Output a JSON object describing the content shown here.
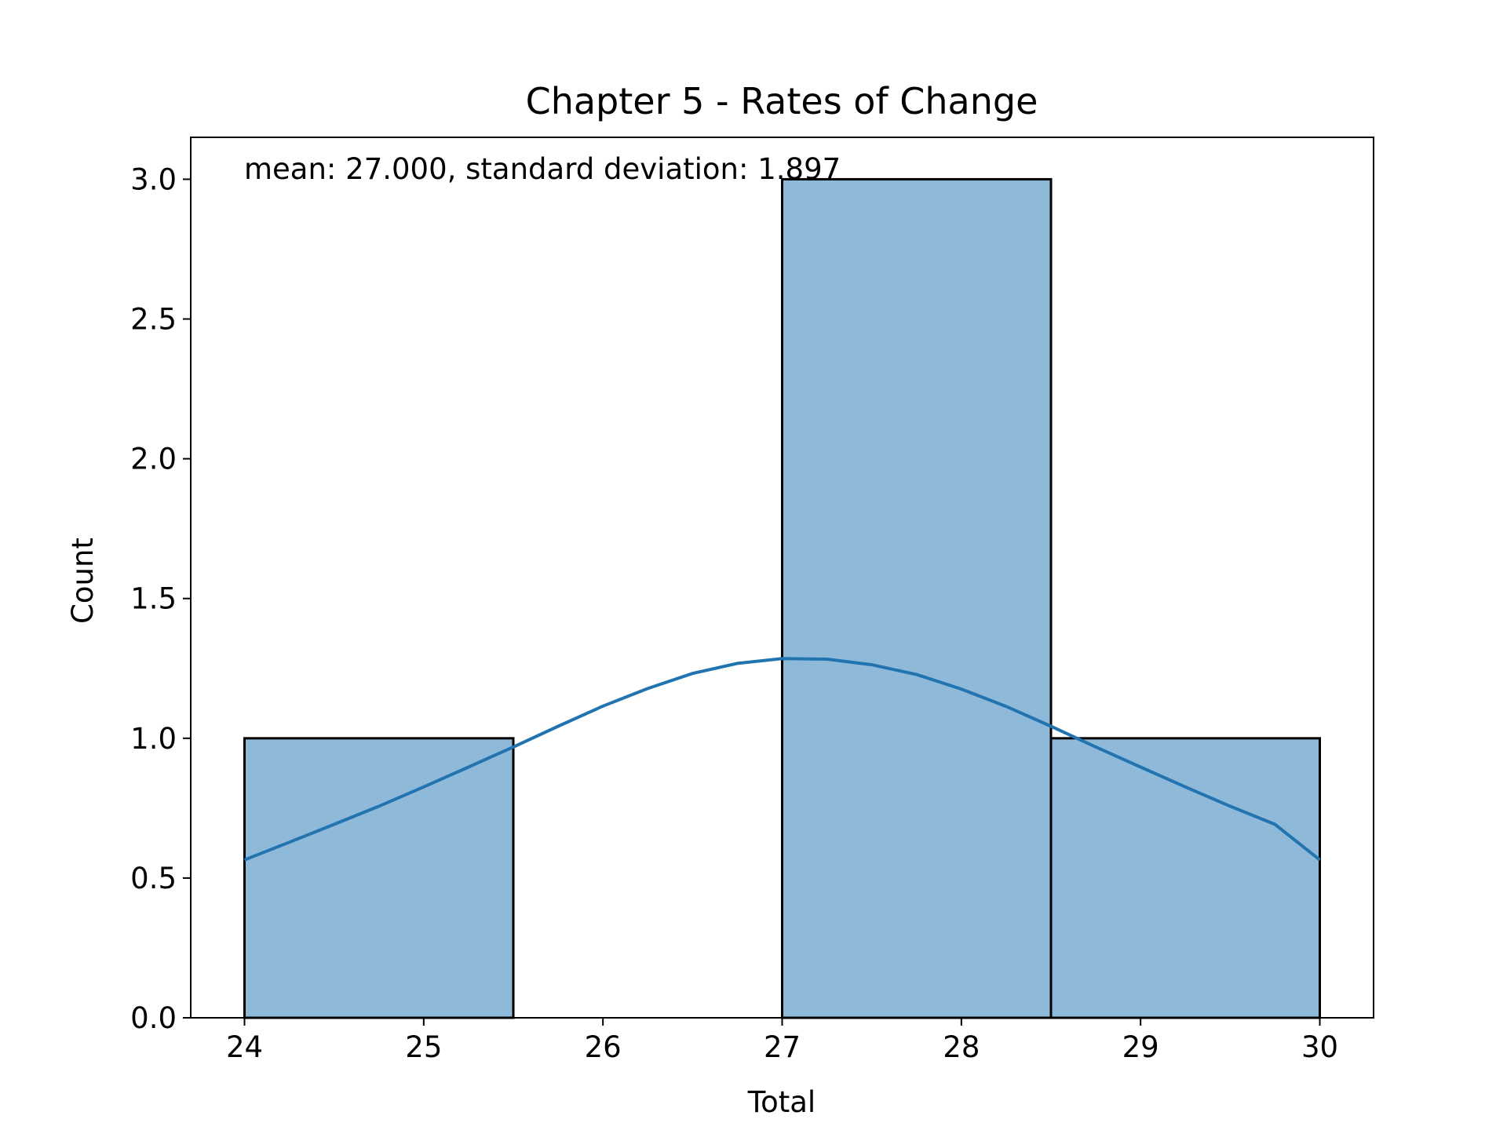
{
  "chart_data": {
    "type": "bar",
    "title": "Chapter 5 - Rates of Change",
    "xlabel": "Total",
    "ylabel": "Count",
    "annotation": "mean: 27.000, standard deviation: 1.897",
    "xlim": [
      23.7,
      30.3
    ],
    "ylim": [
      0,
      3.15
    ],
    "x_ticks": [
      24,
      25,
      26,
      27,
      28,
      29,
      30
    ],
    "x_tick_labels": [
      "24",
      "25",
      "26",
      "27",
      "28",
      "29",
      "30"
    ],
    "y_ticks": [
      0,
      0.5,
      1,
      1.5,
      2,
      2.5,
      3
    ],
    "y_tick_labels": [
      "0.0",
      "0.5",
      "1.0",
      "1.5",
      "2.0",
      "2.5",
      "3.0"
    ],
    "bins": [
      {
        "x0": 24.0,
        "x1": 25.5,
        "count": 1
      },
      {
        "x0": 25.5,
        "x1": 27.0,
        "count": 0
      },
      {
        "x0": 27.0,
        "x1": 28.5,
        "count": 3
      },
      {
        "x0": 28.5,
        "x1": 30.0,
        "count": 1
      }
    ],
    "kde": {
      "x": [
        24.0,
        24.25,
        24.5,
        24.75,
        25.0,
        25.25,
        25.5,
        25.75,
        26.0,
        26.25,
        26.5,
        26.75,
        27.0,
        27.25,
        27.5,
        27.75,
        28.0,
        28.25,
        28.5,
        28.75,
        29.0,
        29.25,
        29.5,
        29.75,
        30.0
      ],
      "y": [
        0.565,
        0.628,
        0.692,
        0.757,
        0.826,
        0.897,
        0.969,
        1.043,
        1.115,
        1.178,
        1.232,
        1.268,
        1.285,
        1.283,
        1.263,
        1.228,
        1.176,
        1.114,
        1.043,
        0.969,
        0.897,
        0.826,
        0.757,
        0.692,
        0.565
      ]
    },
    "grid": false,
    "legend": "none",
    "colors": {
      "bar_fill": "#8fb9d9",
      "bar_edge": "#000000",
      "kde_line": "#2274b0",
      "axes": "#000000"
    }
  }
}
